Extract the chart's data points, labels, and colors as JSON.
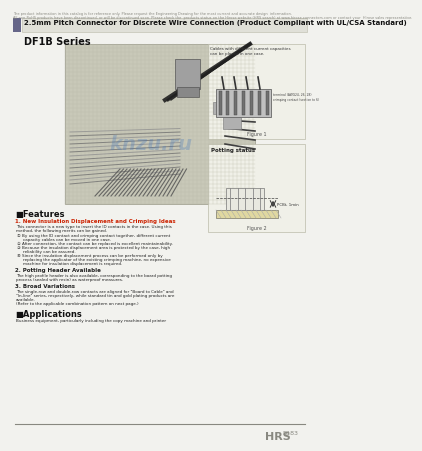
{
  "bg_color": "#f2f2ee",
  "header_bg": "#e0e0d8",
  "title_text": "2.5mm Pitch Connector for Discrete Wire Connection (Product Compliant with UL/CSA Standard)",
  "series_text": "DF1B Series",
  "disclaimer_line1": "The product information in this catalog is for reference only. Please request the Engineering Drawing for the most current and accurate design  information.",
  "disclaimer_line2": "All non-RoHS products have been discontinued, or will be discontinued soon. Please check the  products status on the Hirose website (HRS search) at www.hirose-connectors.com or contact your  Hirose sales representative.",
  "features_title": "■Features",
  "feat1_title": "1. New Insulation Displacement and Crimping Ideas",
  "feat1_body_line1": "This connector is a new type to insert the ID contacts in the case. Using this",
  "feat1_body_line2": "method, the following merits can be gained.",
  "feat1_items": [
    "By using the ID contact and crimping contact together, different current",
    "   capacity cables can be moved in one case.",
    "After connection, the contact can be replaced is excellent maintainability.",
    "Because the insulation displacement area is protected by the case, high",
    "   reliability can be assured.",
    "Since the insulation displacement process can be performed only by",
    "   replacing the applicator of the existing crimping machine, no expensive",
    "   machine for insulation displacement is required."
  ],
  "feat1_bullets": [
    "①",
    "②",
    "③",
    "④"
  ],
  "feat2_title": "2. Potting Header Available",
  "feat2_body": [
    "The high profile header is also available, corresponding to the board potting",
    "process (sealed with resin) as waterproof measures."
  ],
  "feat3_title": "3. Broad Variations",
  "feat3_body": [
    "The single-row and double-row contacts are aligned for \"Board to Cable\" and",
    "\"In-line\" series, respectively, while standard tin and gold plating products are",
    "available.",
    "(Refer to the applicable combination pattern on next page.)"
  ],
  "apps_title": "■Applications",
  "apps_body": "Business equipment, particularly including the copy machine and printer",
  "figure1_caption": "Figure 1",
  "figure2_caption": "Figure 2",
  "potting_title": "Potting status",
  "fig1_note1": "Cables with different current capacities",
  "fig1_note2": "can be placed in one case.",
  "fig1_label1": "terminal (AWG24, 26, 28)",
  "fig1_label2": "crimping contact (section to 6)",
  "potting_label": "PCBt, 1min",
  "hrs_text": "HRS",
  "page_text": "B183",
  "bar_color": "#666688",
  "accent_color": "#444466",
  "photo_bg": "#c8c8b8",
  "grid_color": "#b8b8a8",
  "watermark_text": "knzu.ru",
  "watermark_color": "#4477bb"
}
